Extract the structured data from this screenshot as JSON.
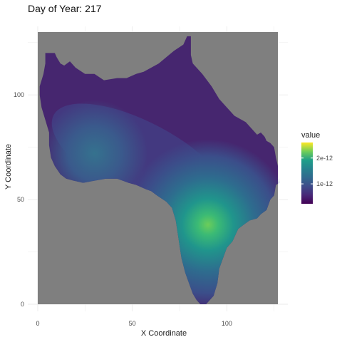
{
  "chart_data": {
    "type": "heatmap",
    "title": "Day of Year: 217",
    "xlabel": "X Coordinate",
    "ylabel": "Y Coordinate",
    "xlim": [
      0,
      127
    ],
    "ylim": [
      0,
      130
    ],
    "x_ticks": [
      0,
      50,
      100
    ],
    "y_ticks": [
      0,
      50,
      100
    ],
    "x_tick_labels": [
      "0",
      "50",
      "100"
    ],
    "y_tick_labels": [
      "0",
      "50",
      "100"
    ],
    "background_fill": "#7f7f7f",
    "grid": true,
    "legend": {
      "title": "value",
      "placement": "right",
      "breaks": [
        1e-12,
        2e-12
      ],
      "labels": [
        "1e-12",
        "2e-12"
      ],
      "range": [
        2.3e-13,
        2.6e-12
      ],
      "colormap": "viridis"
    },
    "region_outline": [
      [
        1,
        104
      ],
      [
        3,
        110
      ],
      [
        4,
        115
      ],
      [
        4,
        120
      ],
      [
        9,
        120
      ],
      [
        10,
        118
      ],
      [
        12,
        115
      ],
      [
        14,
        114
      ],
      [
        17,
        116
      ],
      [
        20,
        113
      ],
      [
        25,
        110
      ],
      [
        30,
        110
      ],
      [
        35,
        107
      ],
      [
        42,
        108
      ],
      [
        47,
        108
      ],
      [
        52,
        110
      ],
      [
        56,
        111
      ],
      [
        64,
        115
      ],
      [
        68,
        118
      ],
      [
        72,
        121
      ],
      [
        77,
        124
      ],
      [
        79,
        128
      ],
      [
        81,
        128
      ],
      [
        81,
        119
      ],
      [
        82,
        115
      ],
      [
        87,
        110
      ],
      [
        92,
        104
      ],
      [
        96,
        98
      ],
      [
        98,
        96
      ],
      [
        104,
        90
      ],
      [
        110,
        87
      ],
      [
        114,
        83
      ],
      [
        116,
        81
      ],
      [
        118,
        82
      ],
      [
        120,
        80
      ],
      [
        121,
        78
      ],
      [
        123,
        77
      ],
      [
        125,
        75
      ],
      [
        126,
        70
      ],
      [
        128,
        62
      ],
      [
        128,
        58
      ],
      [
        126,
        57
      ],
      [
        125,
        52
      ],
      [
        123,
        50
      ],
      [
        121,
        45
      ],
      [
        118,
        43
      ],
      [
        116,
        41
      ],
      [
        112,
        40
      ],
      [
        109,
        38
      ],
      [
        106,
        36
      ],
      [
        103,
        30
      ],
      [
        100,
        27
      ],
      [
        98,
        22
      ],
      [
        96,
        17
      ],
      [
        95,
        10
      ],
      [
        94,
        7
      ],
      [
        93,
        4
      ],
      [
        91,
        2
      ],
      [
        89,
        0
      ],
      [
        86,
        0
      ],
      [
        84,
        2
      ],
      [
        82,
        5
      ],
      [
        80,
        10
      ],
      [
        78,
        15
      ],
      [
        76,
        22
      ],
      [
        75,
        28
      ],
      [
        74,
        34
      ],
      [
        73,
        40
      ],
      [
        71,
        46
      ],
      [
        68,
        49
      ],
      [
        63,
        52
      ],
      [
        60,
        54
      ],
      [
        57,
        55
      ],
      [
        52,
        57
      ],
      [
        48,
        58
      ],
      [
        42,
        60
      ],
      [
        36,
        60
      ],
      [
        30,
        59
      ],
      [
        24,
        58
      ],
      [
        19,
        59
      ],
      [
        15,
        60
      ],
      [
        12,
        62
      ],
      [
        9,
        66
      ],
      [
        7,
        70
      ],
      [
        6,
        76
      ],
      [
        6,
        82
      ],
      [
        4,
        88
      ],
      [
        2,
        94
      ],
      [
        1,
        100
      ]
    ],
    "hotspots": [
      {
        "x": 90,
        "y": 38,
        "value": 2.4e-12
      },
      {
        "x": 30,
        "y": 72,
        "value": 7e-13
      }
    ]
  }
}
